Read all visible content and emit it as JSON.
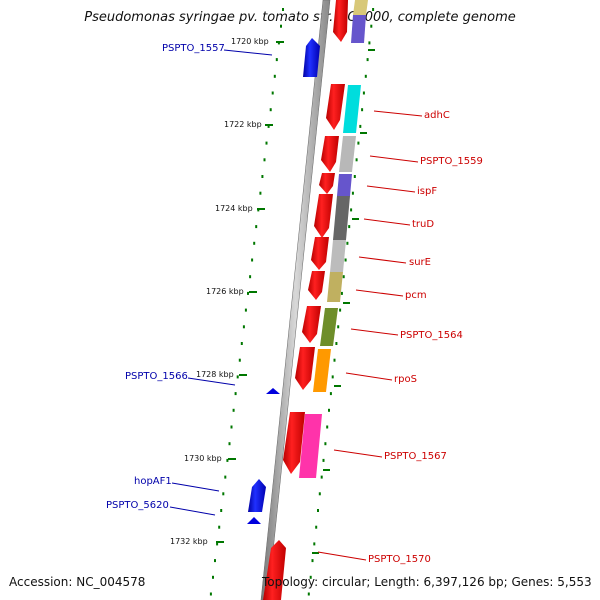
{
  "title": "Pseudomonas syringae pv. tomato str. DC3000, complete genome",
  "accession": "Accession: NC_004578",
  "topology": "Topology: circular; Length: 6,397,126 bp; Genes: 5,553",
  "ticks": [
    "1720 kbp",
    "1722 kbp",
    "1724 kbp",
    "1726 kbp",
    "1728 kbp",
    "1730 kbp",
    "1732 kbp"
  ],
  "genes_left": [
    "PSPTO_1557",
    "PSPTO_1566",
    "hopAF1",
    "PSPTO_5620"
  ],
  "genes_right": [
    "adhC",
    "PSPTO_1559",
    "ispF",
    "truD",
    "surE",
    "pcm",
    "PSPTO_1564",
    "rpoS",
    "PSPTO_1567",
    "PSPTO_1570"
  ],
  "colors": {
    "forward_strand": "#ee0000",
    "reverse_strand": "#0000dd",
    "backbone": "#888888",
    "tick": "#007700",
    "label_red": "#cc0000",
    "label_blue": "#0000aa"
  }
}
